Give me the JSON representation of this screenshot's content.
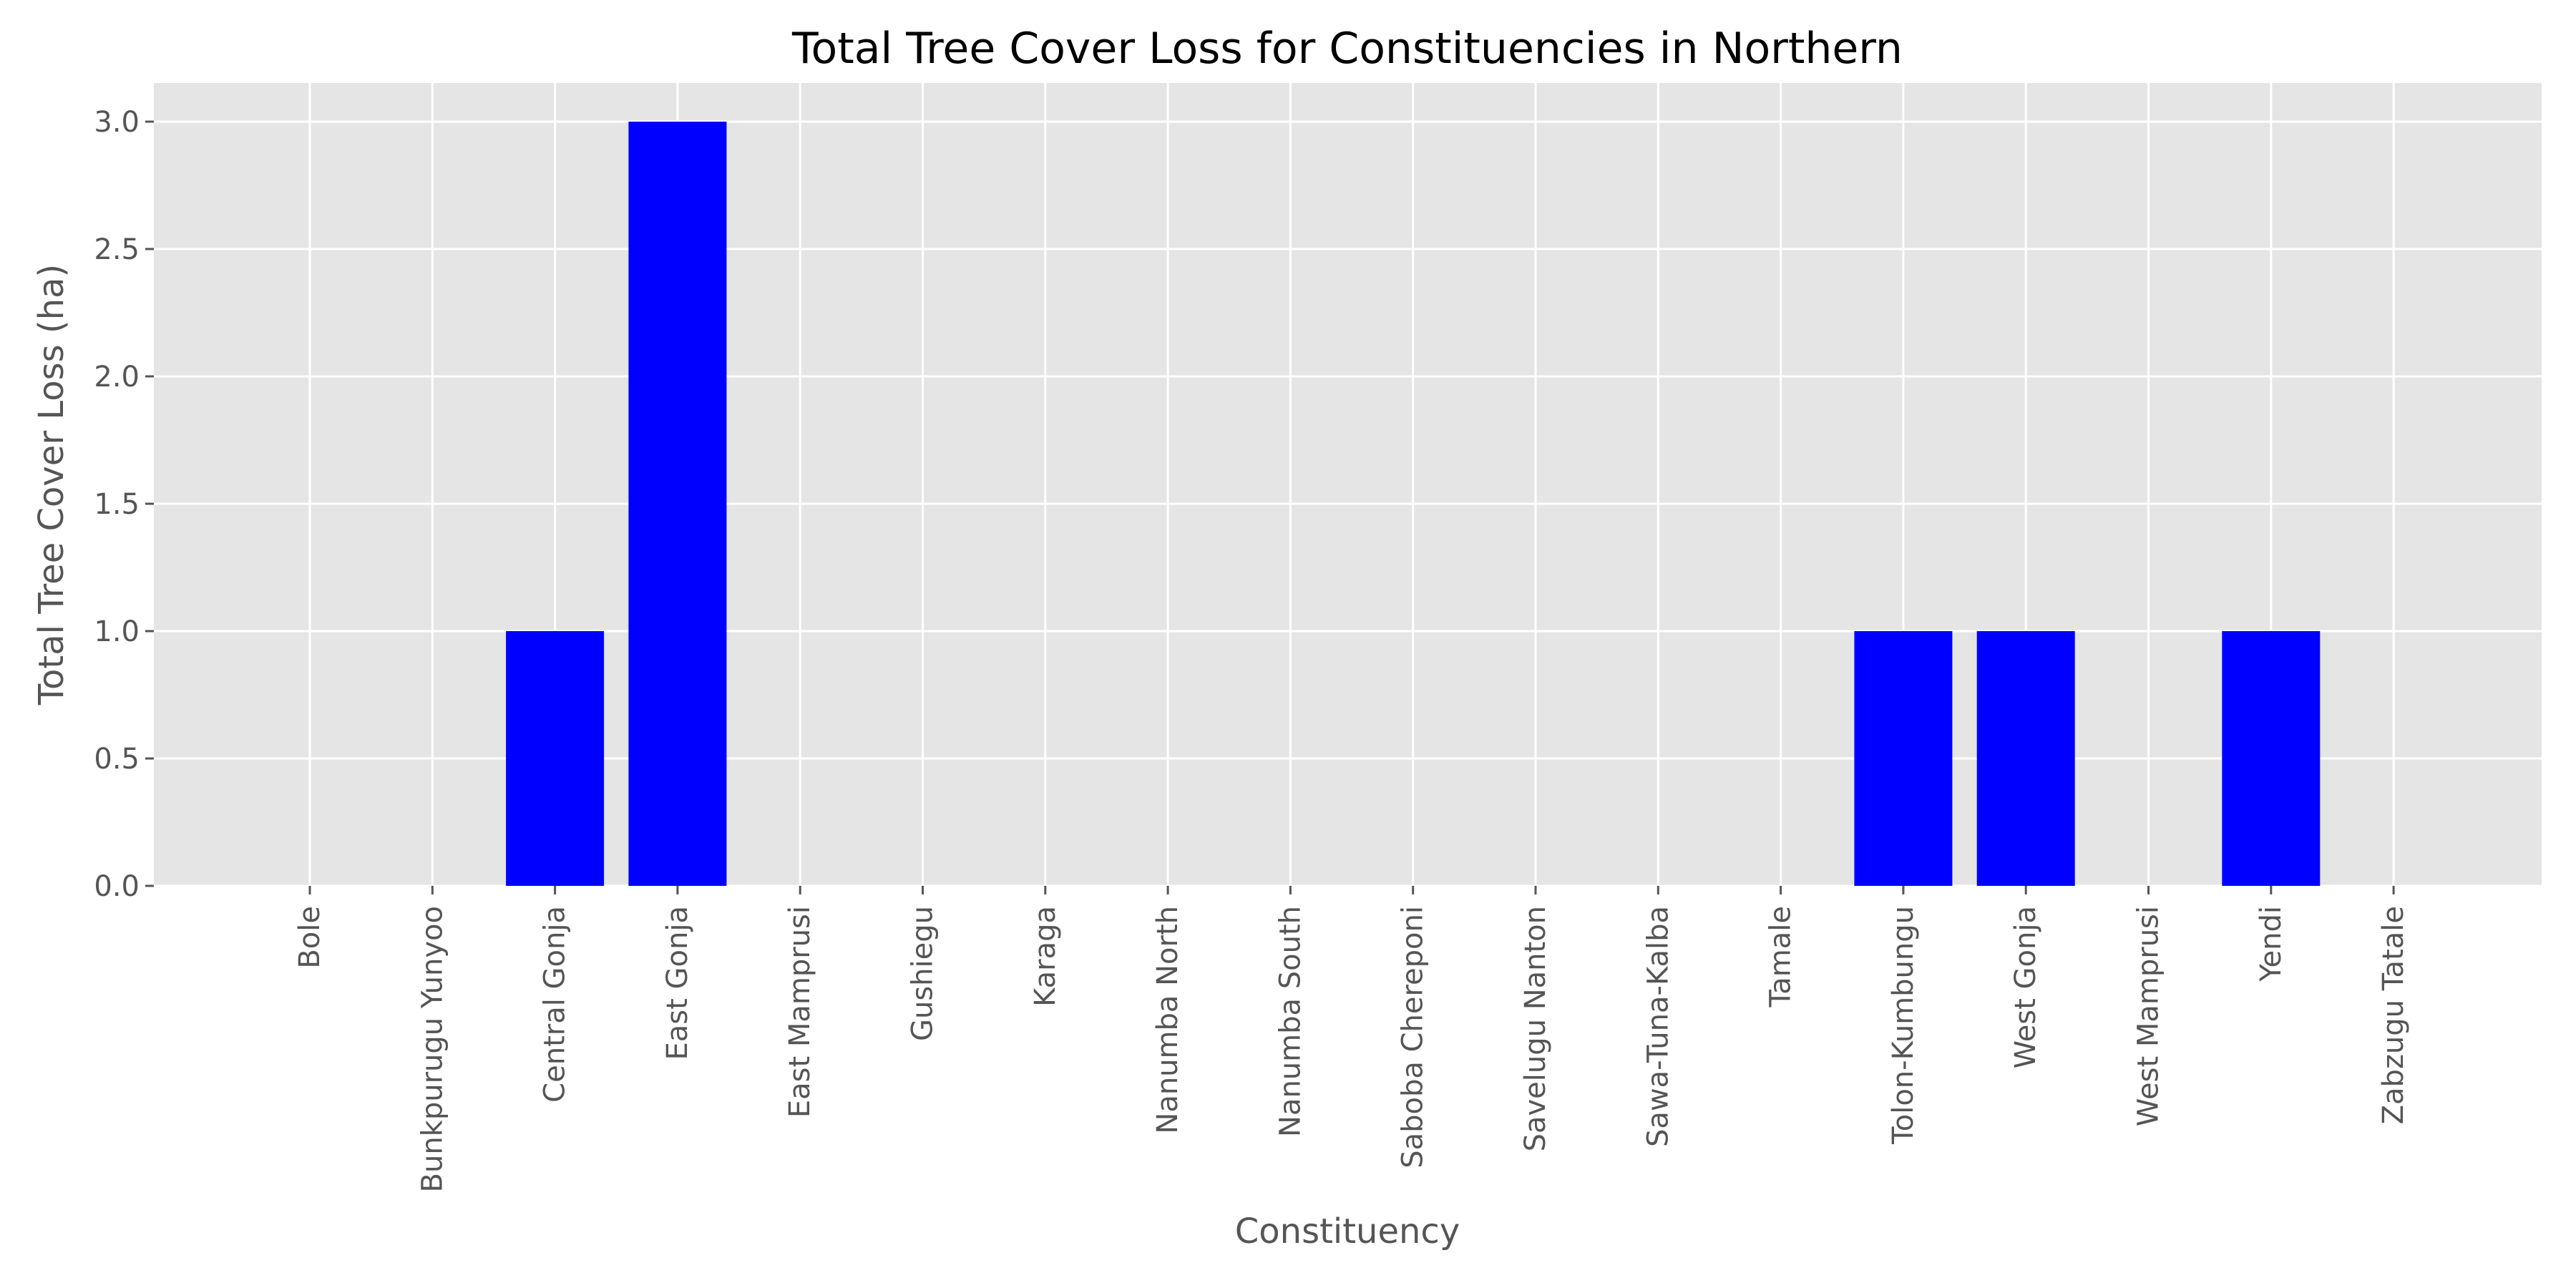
{
  "chart_data": {
    "type": "bar",
    "title": "Total Tree Cover Loss for Constituencies in Northern",
    "xlabel": "Constituency",
    "ylabel": "Total Tree Cover Loss (ha)",
    "categories": [
      "Bole",
      "Bunkpurugu Yunyoo",
      "Central Gonja",
      "East Gonja",
      "East Mamprusi",
      "Gushiegu",
      "Karaga",
      "Nanumba North",
      "Nanumba South",
      "Saboba Chereponi",
      "Savelugu Nanton",
      "Sawa-Tuna-Kalba",
      "Tamale",
      "Tolon-Kumbungu",
      "West Gonja",
      "West Mamprusi",
      "Yendi",
      "Zabzugu Tatale"
    ],
    "values": [
      0,
      0,
      1,
      3,
      0,
      0,
      0,
      0,
      0,
      0,
      0,
      0,
      0,
      1,
      1,
      0,
      1,
      0
    ],
    "ylim": [
      0,
      3.15
    ],
    "yticks": [
      "0.0",
      "0.5",
      "1.0",
      "1.5",
      "2.0",
      "2.5",
      "3.0"
    ],
    "grid": true,
    "colors": {
      "bar": "#0000ff",
      "plot_background": "#e5e5e5",
      "grid": "#ffffff"
    }
  }
}
